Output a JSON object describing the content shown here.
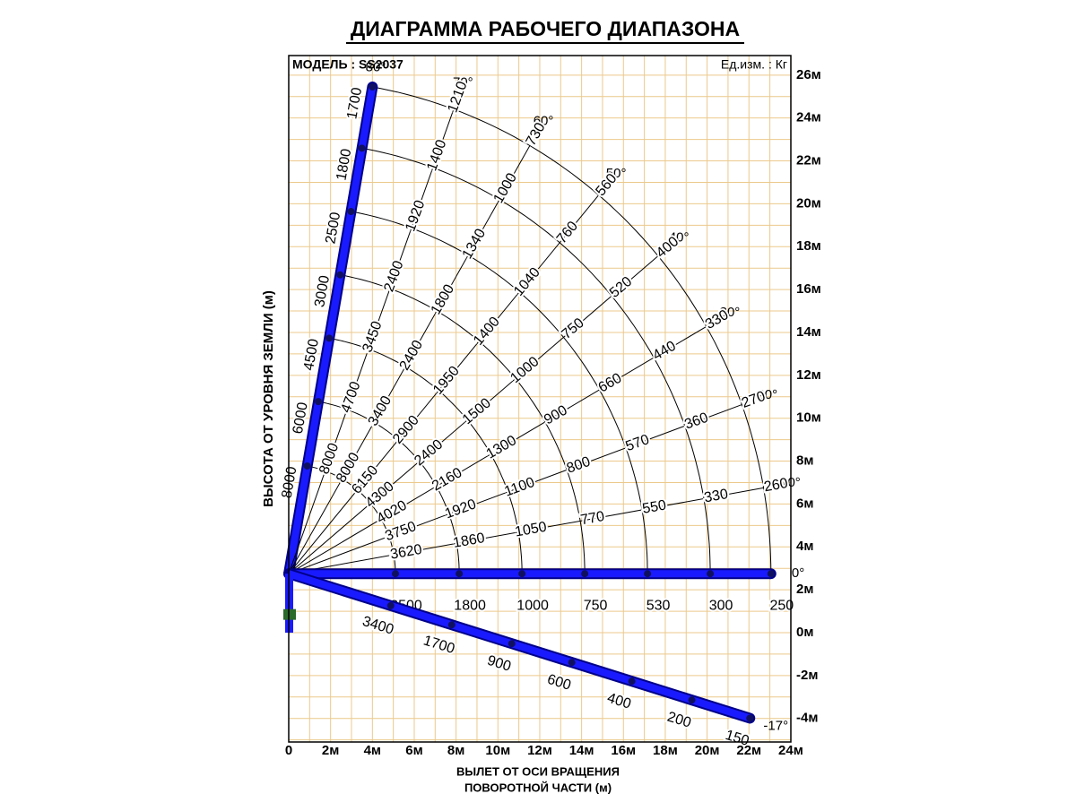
{
  "title": "ДИАГРАММА РАБОЧЕГО ДИАПАЗОНА",
  "model": "МОДЕЛЬ : SS2037",
  "unit": "Ед.изм. : Кг",
  "y_axis_label": "ВЫСОТА ОТ УРОВНЯ ЗЕМЛИ (м)",
  "x_axis_label": [
    "ВЫЛЕТ ОТ ОСИ ВРАЩЕНИЯ",
    "ПОВОРОТНОЙ ЧАСТИ (м)"
  ],
  "x_ticks": [
    "0",
    "2м",
    "4м",
    "6м",
    "8м",
    "10м",
    "12м",
    "14м",
    "16м",
    "18м",
    "20м",
    "22м",
    "24м"
  ],
  "y_ticks": [
    "-4м",
    "-2м",
    "0м",
    "2м",
    "4м",
    "6м",
    "8м",
    "10м",
    "12м",
    "14м",
    "16м",
    "18м",
    "20м",
    "22м",
    "24м",
    "26м"
  ],
  "angles": [
    {
      "label": "80°",
      "loads": [
        8000,
        6000,
        4500,
        3000,
        2500,
        1800,
        1700
      ]
    },
    {
      "label": "70°",
      "loads": [
        8000,
        4700,
        3450,
        2400,
        1920,
        1400,
        1210
      ]
    },
    {
      "label": "60°",
      "loads": [
        8000,
        3400,
        2400,
        1800,
        1340,
        1000,
        730
      ]
    },
    {
      "label": "50°",
      "loads": [
        6150,
        2900,
        1950,
        1400,
        1040,
        760,
        560
      ]
    },
    {
      "label": "40°",
      "loads": [
        4300,
        2400,
        1500,
        1000,
        750,
        520,
        400
      ]
    },
    {
      "label": "30°",
      "loads": [
        4020,
        2160,
        1300,
        900,
        660,
        440,
        330
      ]
    },
    {
      "label": "20°",
      "loads": [
        3750,
        1920,
        1100,
        800,
        570,
        360,
        270
      ]
    },
    {
      "label": "10°",
      "loads": [
        3620,
        1860,
        1050,
        770,
        550,
        330,
        260
      ]
    },
    {
      "label": "0°",
      "loads": [
        3500,
        1800,
        1000,
        750,
        530,
        300,
        250
      ]
    },
    {
      "label": "-17°",
      "loads": [
        3400,
        1700,
        900,
        600,
        400,
        200,
        150
      ]
    }
  ]
}
